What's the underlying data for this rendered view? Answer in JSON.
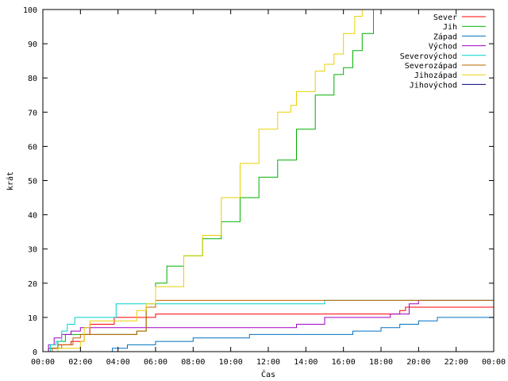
{
  "chart_data": {
    "type": "line",
    "xlabel": "Čas",
    "ylabel": "krát",
    "xlim": [
      0,
      24
    ],
    "ylim": [
      0,
      100
    ],
    "grid": false,
    "legend_position": "top-right",
    "x_ticks": [
      {
        "value": 0,
        "label": "00:00"
      },
      {
        "value": 2,
        "label": "02:00"
      },
      {
        "value": 4,
        "label": "04:00"
      },
      {
        "value": 6,
        "label": "06:00"
      },
      {
        "value": 8,
        "label": "08:00"
      },
      {
        "value": 10,
        "label": "10:00"
      },
      {
        "value": 12,
        "label": "12:00"
      },
      {
        "value": 14,
        "label": "14:00"
      },
      {
        "value": 16,
        "label": "16:00"
      },
      {
        "value": 18,
        "label": "18:00"
      },
      {
        "value": 20,
        "label": "20:00"
      },
      {
        "value": 22,
        "label": "22:00"
      },
      {
        "value": 24,
        "label": "00:00"
      }
    ],
    "y_ticks": [
      0,
      10,
      20,
      30,
      40,
      50,
      60,
      70,
      80,
      90,
      100
    ],
    "series": [
      {
        "name": "Sever",
        "color": "#ff0000",
        "points": [
          [
            0,
            0
          ],
          [
            0.3,
            1
          ],
          [
            0.8,
            2
          ],
          [
            1.5,
            3
          ],
          [
            2.2,
            5
          ],
          [
            2.5,
            8
          ],
          [
            3.8,
            10
          ],
          [
            5.0,
            10
          ],
          [
            6.0,
            11
          ],
          [
            7.5,
            11
          ],
          [
            10,
            11
          ],
          [
            14,
            11
          ],
          [
            16,
            11
          ],
          [
            18.8,
            11
          ],
          [
            19.0,
            12
          ],
          [
            19.3,
            13
          ],
          [
            24,
            13
          ]
        ]
      },
      {
        "name": "Jih",
        "color": "#00b000",
        "points": [
          [
            0,
            0
          ],
          [
            0.3,
            1
          ],
          [
            0.8,
            3
          ],
          [
            1.2,
            5
          ],
          [
            4.5,
            5
          ],
          [
            5.0,
            6
          ],
          [
            5.5,
            13
          ],
          [
            6.0,
            20
          ],
          [
            6.6,
            25
          ],
          [
            7.5,
            28
          ],
          [
            8.5,
            33
          ],
          [
            9.5,
            38
          ],
          [
            10.5,
            45
          ],
          [
            11.5,
            51
          ],
          [
            12.5,
            56
          ],
          [
            13.5,
            65
          ],
          [
            14.5,
            75
          ],
          [
            15.5,
            81
          ],
          [
            16.0,
            83
          ],
          [
            16.5,
            88
          ],
          [
            17.0,
            93
          ],
          [
            17.6,
            100
          ]
        ]
      },
      {
        "name": "Západ",
        "color": "#0070c0",
        "points": [
          [
            0,
            0
          ],
          [
            3.5,
            0
          ],
          [
            3.7,
            1
          ],
          [
            4.5,
            2
          ],
          [
            6.0,
            3
          ],
          [
            8.0,
            4
          ],
          [
            11.0,
            5
          ],
          [
            14.0,
            5
          ],
          [
            16.0,
            5
          ],
          [
            16.5,
            6
          ],
          [
            18.0,
            7
          ],
          [
            19.0,
            8
          ],
          [
            20.0,
            9
          ],
          [
            21.0,
            10
          ],
          [
            23.8,
            10
          ],
          [
            24,
            12
          ]
        ]
      },
      {
        "name": "Východ",
        "color": "#a000c0",
        "points": [
          [
            0,
            0
          ],
          [
            0.3,
            2
          ],
          [
            0.6,
            4
          ],
          [
            1.0,
            5
          ],
          [
            1.5,
            6
          ],
          [
            2.0,
            7
          ],
          [
            5.0,
            7
          ],
          [
            6.0,
            7
          ],
          [
            10.0,
            7
          ],
          [
            13.0,
            7
          ],
          [
            13.5,
            8
          ],
          [
            14.7,
            8
          ],
          [
            15.0,
            10
          ],
          [
            17.0,
            10
          ],
          [
            18.5,
            11
          ],
          [
            19.5,
            14
          ],
          [
            20.0,
            15
          ],
          [
            24,
            15
          ]
        ]
      },
      {
        "name": "Severovýchod",
        "color": "#00d0d0",
        "points": [
          [
            0,
            0
          ],
          [
            0.4,
            2
          ],
          [
            0.7,
            3
          ],
          [
            1.0,
            6
          ],
          [
            1.3,
            8
          ],
          [
            1.7,
            10
          ],
          [
            2.5,
            10
          ],
          [
            3.6,
            10
          ],
          [
            3.9,
            14
          ],
          [
            6.0,
            14
          ],
          [
            10.0,
            14
          ],
          [
            14.0,
            14
          ],
          [
            15.0,
            15
          ],
          [
            20.0,
            15
          ],
          [
            24,
            15
          ]
        ]
      },
      {
        "name": "Severozápad",
        "color": "#c06000",
        "points": [
          [
            0,
            0
          ],
          [
            0.5,
            1
          ],
          [
            1.0,
            2
          ],
          [
            1.6,
            4
          ],
          [
            2.0,
            5
          ],
          [
            3.0,
            5
          ],
          [
            4.5,
            5
          ],
          [
            5.0,
            6
          ],
          [
            5.5,
            13
          ],
          [
            6.0,
            15
          ],
          [
            24,
            15
          ]
        ]
      },
      {
        "name": "Jihozápad",
        "color": "#e8d000",
        "points": [
          [
            0,
            0
          ],
          [
            0.5,
            0
          ],
          [
            0.8,
            1
          ],
          [
            1.5,
            1
          ],
          [
            2.0,
            3
          ],
          [
            2.2,
            7
          ],
          [
            2.5,
            9
          ],
          [
            4.5,
            9
          ],
          [
            5.0,
            12
          ],
          [
            5.5,
            14
          ],
          [
            6.0,
            19
          ],
          [
            6.5,
            19
          ],
          [
            7.5,
            28
          ],
          [
            8.5,
            34
          ],
          [
            9.5,
            45
          ],
          [
            10.5,
            55
          ],
          [
            11.5,
            65
          ],
          [
            12.5,
            70
          ],
          [
            13.2,
            72
          ],
          [
            13.5,
            76
          ],
          [
            14.5,
            82
          ],
          [
            15.0,
            84
          ],
          [
            15.5,
            87
          ],
          [
            16.0,
            93
          ],
          [
            16.6,
            98
          ],
          [
            17.0,
            100
          ]
        ]
      },
      {
        "name": "Jihovýchod",
        "color": "#000080",
        "points": [
          [
            0,
            0
          ],
          [
            24,
            0
          ]
        ]
      }
    ]
  }
}
